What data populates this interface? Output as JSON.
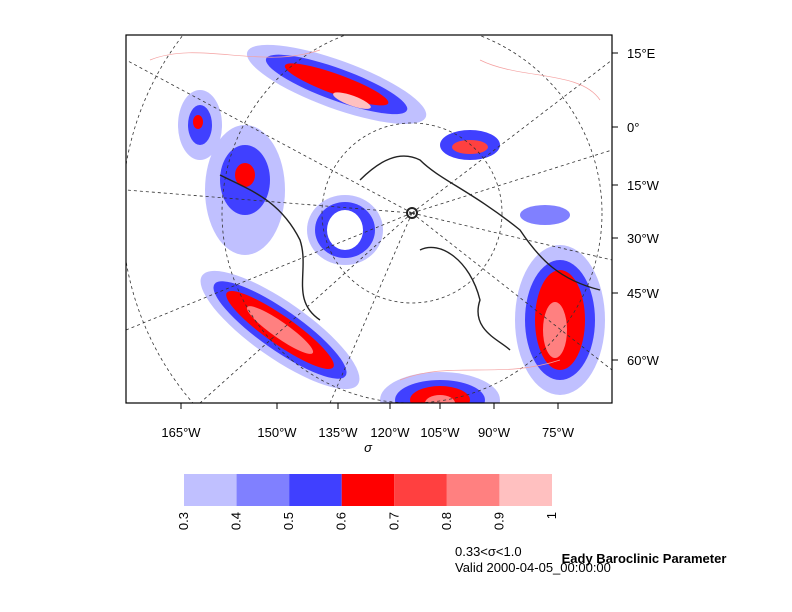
{
  "map": {
    "right_labels": [
      "15°E",
      "0°",
      "15°W",
      "30°W",
      "45°W",
      "60°W"
    ],
    "bottom_labels": [
      "165°W",
      "150°W",
      "135°W",
      "120°W",
      "105°W",
      "90°W",
      "75°W"
    ],
    "x_label": "σ"
  },
  "colorbar": {
    "levels": [
      0.3,
      0.4,
      0.5,
      0.6,
      0.7,
      0.8,
      0.9,
      1
    ],
    "colors": [
      "#c0c0ff",
      "#8080ff",
      "#4040ff",
      "#ff0000",
      "#ff4040",
      "#ff8080",
      "#ffc0c0"
    ]
  },
  "caption": {
    "title": "Eady Baroclinic Parameter",
    "subtitle": "0.33<σ<1.0",
    "valid": "Valid 2000-04-05_00:00:00"
  }
}
